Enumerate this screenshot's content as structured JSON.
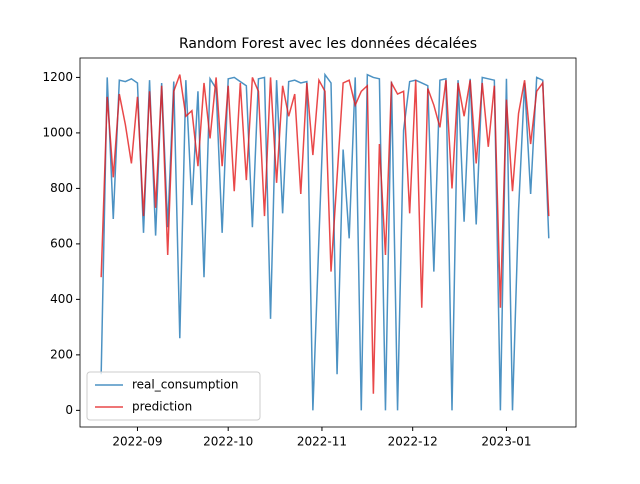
{
  "chart_data": {
    "type": "line",
    "title": "Random Forest avec les données décalées",
    "x": [
      "2022-08-20",
      "2022-08-22",
      "2022-08-24",
      "2022-08-26",
      "2022-08-28",
      "2022-08-30",
      "2022-09-01",
      "2022-09-03",
      "2022-09-05",
      "2022-09-07",
      "2022-09-09",
      "2022-09-11",
      "2022-09-13",
      "2022-09-15",
      "2022-09-17",
      "2022-09-19",
      "2022-09-21",
      "2022-09-23",
      "2022-09-25",
      "2022-09-27",
      "2022-09-29",
      "2022-10-01",
      "2022-10-03",
      "2022-10-05",
      "2022-10-07",
      "2022-10-09",
      "2022-10-11",
      "2022-10-13",
      "2022-10-15",
      "2022-10-17",
      "2022-10-19",
      "2022-10-21",
      "2022-10-23",
      "2022-10-25",
      "2022-10-27",
      "2022-10-29",
      "2022-10-31",
      "2022-11-02",
      "2022-11-04",
      "2022-11-06",
      "2022-11-08",
      "2022-11-10",
      "2022-11-12",
      "2022-11-14",
      "2022-11-16",
      "2022-11-18",
      "2022-11-20",
      "2022-11-22",
      "2022-11-24",
      "2022-11-26",
      "2022-11-28",
      "2022-11-30",
      "2022-12-02",
      "2022-12-04",
      "2022-12-06",
      "2022-12-08",
      "2022-12-10",
      "2022-12-12",
      "2022-12-14",
      "2022-12-16",
      "2022-12-18",
      "2022-12-20",
      "2022-12-22",
      "2022-12-24",
      "2022-12-26",
      "2022-12-28",
      "2022-12-30",
      "2023-01-01",
      "2023-01-03",
      "2023-01-05",
      "2023-01-07",
      "2023-01-09",
      "2023-01-11",
      "2023-01-13",
      "2023-01-15"
    ],
    "series": [
      {
        "name": "real_consumption",
        "color": "#1f77b4",
        "values": [
          130,
          1200,
          690,
          1190,
          1185,
          1195,
          1180,
          640,
          1190,
          630,
          1180,
          660,
          1185,
          260,
          1190,
          740,
          1150,
          480,
          1195,
          1160,
          640,
          1195,
          1200,
          1185,
          1170,
          660,
          1195,
          1200,
          330,
          1190,
          710,
          1185,
          1190,
          1180,
          1185,
          0,
          620,
          1210,
          1180,
          130,
          940,
          620,
          1200,
          0,
          1210,
          1200,
          1195,
          0,
          1185,
          0,
          1010,
          1185,
          1190,
          1180,
          1170,
          500,
          1190,
          1195,
          0,
          1190,
          680,
          1195,
          670,
          1200,
          1195,
          1190,
          0,
          1195,
          0,
          720,
          1180,
          780,
          1200,
          1190,
          620
        ]
      },
      {
        "name": "prediction",
        "color": "#e41a1c",
        "values": [
          480,
          1130,
          840,
          1140,
          1030,
          890,
          1130,
          700,
          1150,
          730,
          1170,
          560,
          1150,
          1210,
          1060,
          1080,
          880,
          1180,
          980,
          1200,
          880,
          1170,
          790,
          1180,
          830,
          1200,
          1150,
          700,
          1200,
          820,
          1170,
          1060,
          1140,
          780,
          1180,
          920,
          1190,
          1150,
          500,
          840,
          1180,
          1190,
          1100,
          1150,
          1170,
          60,
          960,
          560,
          1180,
          1140,
          1150,
          710,
          1190,
          370,
          1160,
          1100,
          1020,
          1190,
          800,
          1180,
          1060,
          1190,
          890,
          1180,
          950,
          1170,
          370,
          1120,
          790,
          1070,
          1190,
          960,
          1150,
          1180,
          700
        ]
      }
    ],
    "xlim": [
      "2022-08-13",
      "2023-01-24"
    ],
    "xticks": [
      "2022-09",
      "2022-10",
      "2022-11",
      "2022-12",
      "2023-01"
    ],
    "ylim": [
      -60,
      1270
    ],
    "yticks": [
      0,
      200,
      400,
      600,
      800,
      1000,
      1200
    ],
    "legend": "lower left"
  }
}
